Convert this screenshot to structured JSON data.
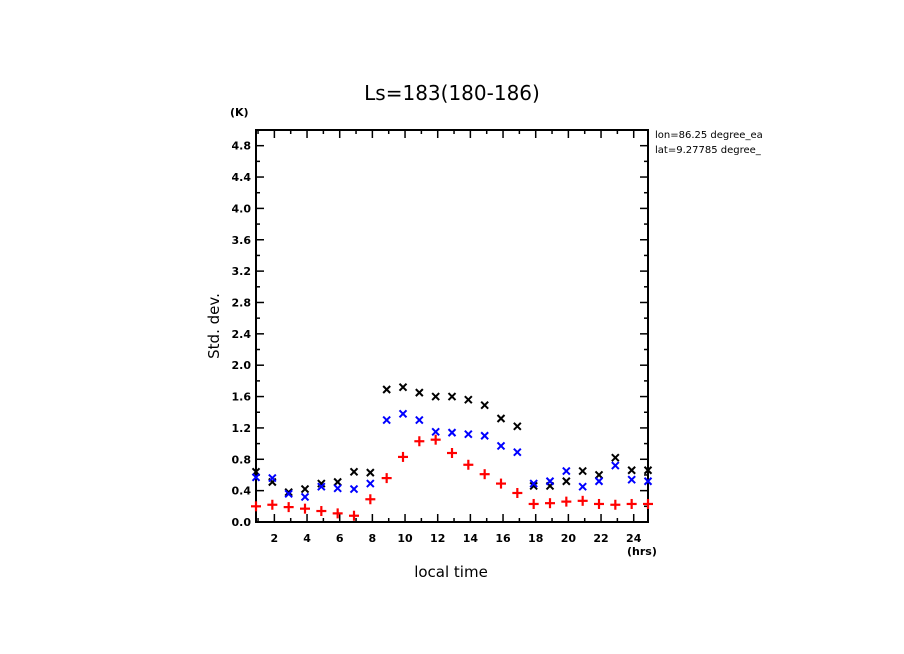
{
  "chart_data": {
    "type": "scatter",
    "title": "Ls=183(180-186)",
    "xlabel": "local time",
    "ylabel": "Std. dev.",
    "x_unit": "(hrs)",
    "y_unit": "(K)",
    "xlim": [
      0.875,
      24.875
    ],
    "ylim": [
      0.0,
      5.0
    ],
    "x_ticks": [
      2,
      4,
      6,
      8,
      10,
      12,
      14,
      16,
      18,
      20,
      22,
      24
    ],
    "x_tick_labels": [
      "2",
      "4",
      "6",
      "8",
      "10",
      "12",
      "14",
      "16",
      "18",
      "20",
      "22",
      "24"
    ],
    "y_ticks": [
      0.0,
      0.4,
      0.8,
      1.2,
      1.6,
      2.0,
      2.4,
      2.8,
      3.2,
      3.6,
      4.0,
      4.4,
      4.8
    ],
    "y_tick_labels": [
      "0.0",
      "0.4",
      "0.8",
      "1.2",
      "1.6",
      "2.0",
      "2.4",
      "2.8",
      "3.2",
      "3.6",
      "4.0",
      "4.4",
      "4.8"
    ],
    "grid": false,
    "annotations": [
      "lon=86.25 degree_ea",
      "lat=9.27785 degree_"
    ],
    "x": [
      0.875,
      1.875,
      2.875,
      3.875,
      4.875,
      5.875,
      6.875,
      7.875,
      8.875,
      9.875,
      10.875,
      11.875,
      12.875,
      13.875,
      14.875,
      15.875,
      16.875,
      17.875,
      18.875,
      19.875,
      20.875,
      21.875,
      22.875,
      23.875,
      24.875
    ],
    "series": [
      {
        "name": "black",
        "marker": "x",
        "color": "#000000",
        "values": [
          0.64,
          0.51,
          0.38,
          0.42,
          0.49,
          0.51,
          0.64,
          0.63,
          1.69,
          1.72,
          1.65,
          1.6,
          1.6,
          1.56,
          1.49,
          1.32,
          1.22,
          0.46,
          0.46,
          0.52,
          0.65,
          0.6,
          0.82,
          0.66,
          0.66
        ]
      },
      {
        "name": "blue",
        "marker": "x",
        "color": "#0000ff",
        "values": [
          0.57,
          0.56,
          0.36,
          0.32,
          0.45,
          0.43,
          0.42,
          0.49,
          1.3,
          1.38,
          1.3,
          1.15,
          1.14,
          1.12,
          1.1,
          0.97,
          0.89,
          0.49,
          0.52,
          0.65,
          0.45,
          0.52,
          0.72,
          0.54,
          0.52
        ]
      },
      {
        "name": "red",
        "marker": "+",
        "color": "#ff0000",
        "values": [
          0.2,
          0.22,
          0.19,
          0.17,
          0.14,
          0.11,
          0.08,
          0.29,
          0.56,
          0.83,
          1.03,
          1.05,
          0.88,
          0.73,
          0.61,
          0.49,
          0.37,
          0.23,
          0.24,
          0.26,
          0.27,
          0.23,
          0.22,
          0.23,
          0.23
        ]
      }
    ]
  }
}
